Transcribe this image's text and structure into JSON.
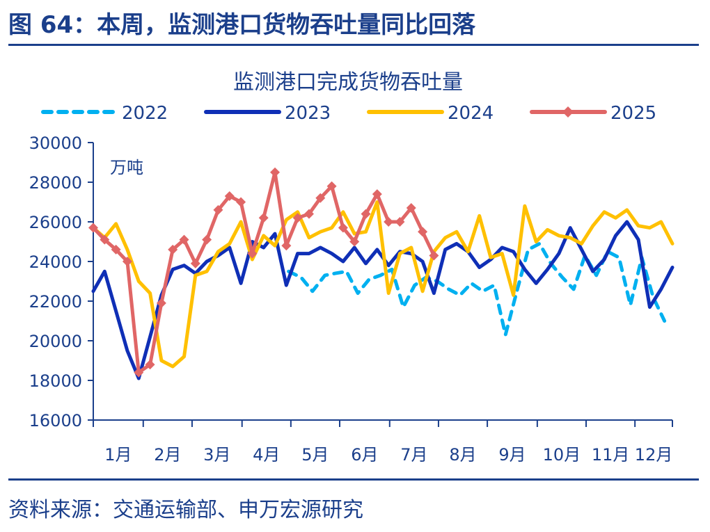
{
  "figure": {
    "title": "图 64：本周，监测港口货物吞吐量同比回落",
    "source": "资料来源：交通运输部、申万宏源研究"
  },
  "chart_data": {
    "type": "line",
    "title": "监测港口完成货物吞吐量",
    "unit_label": "万吨",
    "xlabel": "",
    "ylabel": "",
    "ylim": [
      16000,
      30000
    ],
    "yticks": [
      16000,
      18000,
      20000,
      22000,
      24000,
      26000,
      28000,
      30000
    ],
    "xlim": [
      1,
      52
    ],
    "xtick_labels": [
      "1月",
      "2月",
      "3月",
      "4月",
      "5月",
      "6月",
      "7月",
      "8月",
      "9月",
      "10月",
      "11月",
      "12月"
    ],
    "xtick_positions": [
      1,
      5.4,
      9.7,
      14.1,
      18.4,
      22.7,
      27.1,
      31.4,
      35.7,
      40.1,
      44.4,
      48.7
    ],
    "legend_position": "top",
    "grid": false,
    "series": [
      {
        "name": "2022",
        "color": "#00b0f0",
        "style": "dashed",
        "x": [
          18.2,
          19.3,
          20.3,
          21.4,
          22.3,
          23.3,
          24.3,
          25.3,
          26.3,
          27.3,
          28.3,
          29.3,
          30.3,
          31.3,
          32.3,
          33.3,
          34.3,
          35.3,
          36.3,
          37.3,
          38.3,
          39.3,
          40.3,
          41.3,
          42.3,
          43.3,
          44.3,
          45.3,
          46.3,
          47.3,
          48.3,
          49.3,
          50.3,
          51.3
        ],
        "values": [
          23500,
          23200,
          22500,
          23300,
          23400,
          23500,
          22400,
          23100,
          23300,
          23600,
          21700,
          22800,
          23200,
          23000,
          22600,
          22300,
          22900,
          22500,
          22800,
          20300,
          22500,
          24600,
          24900,
          23900,
          23200,
          22600,
          24300,
          23300,
          24500,
          24200,
          21800,
          24200,
          22200,
          21000
        ]
      },
      {
        "name": "2023",
        "color": "#0f2fb6",
        "style": "solid",
        "x": [
          1,
          2,
          3,
          4,
          5,
          6,
          7,
          8,
          9,
          10,
          11,
          12,
          13,
          14,
          15,
          16,
          17,
          18,
          19,
          20,
          21,
          22,
          23,
          24,
          25,
          26,
          27,
          28,
          29,
          30,
          31,
          32,
          33,
          34,
          35,
          36,
          37,
          38,
          39,
          40,
          41,
          42,
          43,
          44,
          45,
          46,
          47,
          48,
          49,
          50,
          51,
          52
        ],
        "values": [
          22500,
          23500,
          21500,
          19500,
          18100,
          20200,
          22300,
          23600,
          23800,
          23400,
          24000,
          24300,
          24700,
          22900,
          25000,
          24700,
          25400,
          22800,
          24400,
          24400,
          24700,
          24400,
          24000,
          24700,
          23900,
          24600,
          23800,
          24500,
          24400,
          24000,
          22400,
          24600,
          24900,
          24500,
          23700,
          24100,
          24700,
          24500,
          23600,
          22900,
          23600,
          24400,
          25700,
          24600,
          23500,
          24100,
          25300,
          26000,
          25100,
          21700,
          22600,
          23700
        ]
      },
      {
        "name": "2024",
        "color": "#ffc000",
        "style": "solid",
        "x": [
          1,
          2,
          3,
          4,
          5,
          6,
          7,
          8,
          9,
          10,
          11,
          12,
          13,
          14,
          15,
          16,
          17,
          18,
          19,
          20,
          21,
          22,
          23,
          24,
          25,
          26,
          27,
          28,
          29,
          30,
          31,
          32,
          33,
          34,
          35,
          36,
          37,
          38,
          39,
          40,
          41,
          42,
          43,
          44,
          45,
          46,
          47,
          48,
          49,
          50,
          51,
          52
        ],
        "values": [
          25700,
          25200,
          25900,
          24600,
          23000,
          22400,
          19000,
          18700,
          19200,
          23300,
          23500,
          24500,
          24900,
          26000,
          24100,
          25300,
          24800,
          26100,
          26500,
          25200,
          25500,
          25700,
          26500,
          25400,
          25500,
          27000,
          22400,
          24400,
          24700,
          22500,
          24500,
          25200,
          25500,
          24500,
          26300,
          24200,
          24400,
          22300,
          26800,
          25000,
          25600,
          25300,
          25200,
          24900,
          25800,
          26500,
          26200,
          26600,
          25800,
          25700,
          26000,
          24900
        ]
      },
      {
        "name": "2025",
        "color": "#e06666",
        "style": "solid-diamond",
        "x": [
          1,
          2,
          3,
          4,
          5,
          6,
          7,
          8,
          9,
          10,
          11,
          12,
          13,
          14,
          15,
          16,
          17,
          18,
          19,
          20,
          21,
          22,
          23,
          24,
          25,
          26,
          27,
          28,
          29,
          30,
          31
        ],
        "values": [
          25700,
          25100,
          24600,
          24000,
          18400,
          18800,
          21900,
          24600,
          25100,
          23900,
          25100,
          26600,
          27300,
          27000,
          24400,
          26200,
          28500,
          24800,
          26200,
          26400,
          27200,
          27800,
          25700,
          25000,
          26400,
          27400,
          26000,
          26000,
          26700,
          25500,
          24300
        ]
      }
    ]
  }
}
